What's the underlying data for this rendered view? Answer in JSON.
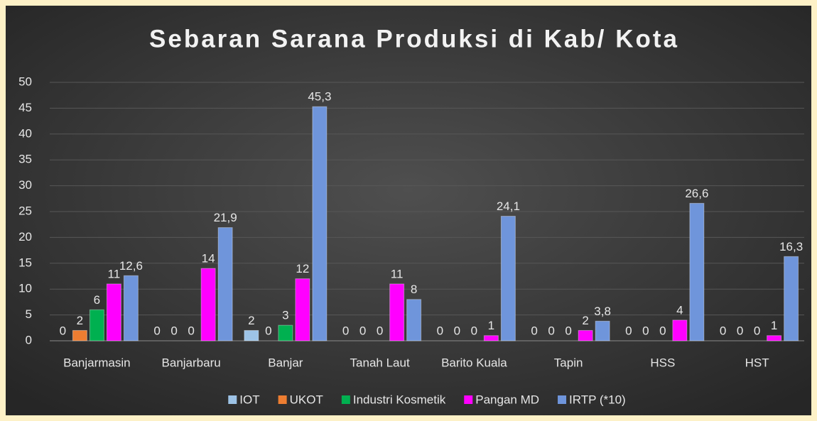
{
  "chart_data": {
    "type": "bar",
    "title": "Sebaran Sarana Produksi di Kab/ Kota",
    "categories": [
      "Banjarmasin",
      "Banjarbaru",
      "Banjar",
      "Tanah Laut",
      "Barito Kuala",
      "Tapin",
      "HSS",
      "HST"
    ],
    "series": [
      {
        "name": "IOT",
        "color": "#9dc3e6",
        "values": [
          0,
          0,
          2,
          0,
          0,
          0,
          0,
          0
        ]
      },
      {
        "name": "UKOT",
        "color": "#ed7d31",
        "values": [
          2,
          0,
          0,
          0,
          0,
          0,
          0,
          0
        ]
      },
      {
        "name": "Industri Kosmetik",
        "color": "#00b050",
        "values": [
          6,
          0,
          3,
          0,
          0,
          0,
          0,
          0
        ]
      },
      {
        "name": "Pangan MD",
        "color": "#ff00ff",
        "values": [
          11,
          14,
          12,
          11,
          1,
          2,
          4,
          1
        ]
      },
      {
        "name": "IRTP (*10)",
        "color": "#6f95db",
        "values": [
          12.6,
          21.9,
          45.3,
          8,
          24.1,
          3.8,
          26.6,
          16.3
        ],
        "value_labels": [
          "12,6",
          "21,9",
          "45,3",
          "8",
          "24,1",
          "3,8",
          "26,6",
          "16,3"
        ]
      }
    ],
    "ylim": [
      0,
      50
    ],
    "yticks": [
      0,
      5,
      10,
      15,
      20,
      25,
      30,
      35,
      40,
      45,
      50
    ],
    "grid": true,
    "legend": "bottom"
  }
}
